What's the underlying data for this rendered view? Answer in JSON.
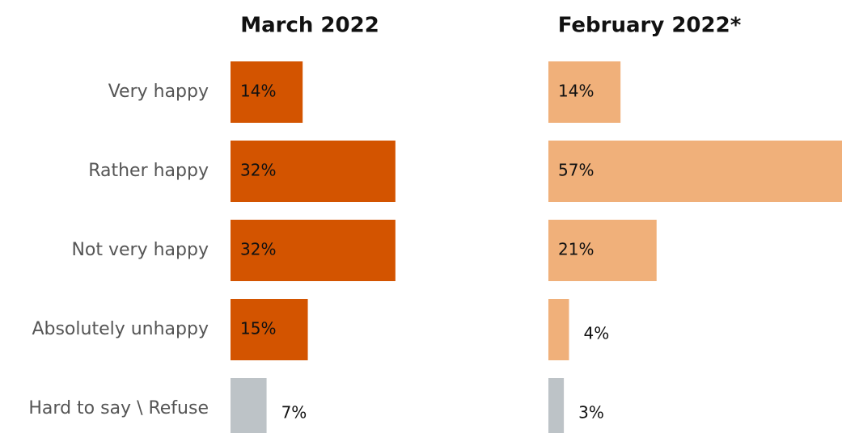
{
  "chart_data": {
    "type": "bar",
    "orientation": "horizontal",
    "categories": [
      "Very happy",
      "Rather happy",
      "Not very happy",
      "Absolutely unhappy",
      "Hard to say \\ Refuse"
    ],
    "series": [
      {
        "name": "March 2022",
        "colors": [
          "#d35400",
          "#d35400",
          "#d35400",
          "#d35400",
          "#bdc3c7"
        ],
        "values": [
          14,
          32,
          32,
          15,
          7
        ],
        "value_labels": [
          "14%",
          "32%",
          "32%",
          "15%",
          "7%"
        ]
      },
      {
        "name": "February 2022*",
        "colors": [
          "#f0b07a",
          "#f0b07a",
          "#f0b07a",
          "#f0b07a",
          "#bdc3c7"
        ],
        "values": [
          14,
          57,
          21,
          4,
          3
        ],
        "value_labels": [
          "14%",
          "57%",
          "21%",
          "4%",
          "3%"
        ]
      }
    ]
  }
}
